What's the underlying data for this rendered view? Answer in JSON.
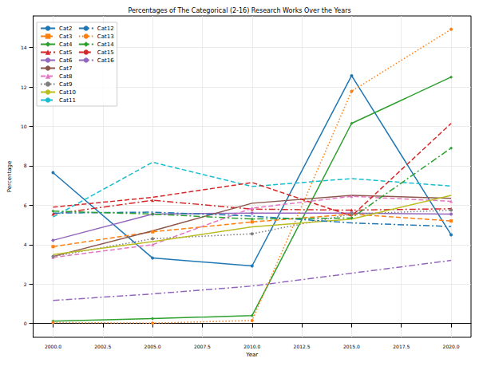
{
  "chart_data": {
    "type": "line",
    "title": "Percentages of The Categorical (2-16) Research Works Over the Years",
    "x_label": "Year",
    "y_label": "Percentage",
    "x": [
      2000,
      2005,
      2010,
      2015,
      2020
    ],
    "xlim": [
      1999,
      2021
    ],
    "xticks": [
      {
        "value": 2000,
        "label": "2000.0"
      },
      {
        "value": 2002.5,
        "label": "2002.5"
      },
      {
        "value": 2005,
        "label": "2005.0"
      },
      {
        "value": 2007.5,
        "label": "2007.5"
      },
      {
        "value": 2010,
        "label": "2010.0"
      },
      {
        "value": 2012.5,
        "label": "2012.5"
      },
      {
        "value": 2015,
        "label": "2015.0"
      },
      {
        "value": 2017.5,
        "label": "2017.5"
      },
      {
        "value": 2020,
        "label": "2020.0"
      }
    ],
    "ylim": [
      -0.7,
      15.6
    ],
    "yticks": [
      0,
      2,
      4,
      6,
      8,
      10,
      12,
      14
    ],
    "grid": true,
    "legend": "upper left",
    "series": [
      {
        "name": "Cat2",
        "color": "#1f77b4",
        "line_style": "solid",
        "marker": "circle",
        "values": [
          7.65,
          3.32,
          2.92,
          12.57,
          4.5
        ]
      },
      {
        "name": "Cat3",
        "color": "#ff7f0e",
        "line_style": "dashed",
        "marker": "square",
        "values": [
          3.9,
          4.65,
          5.15,
          5.55,
          5.2
        ]
      },
      {
        "name": "Cat4",
        "color": "#2ca02c",
        "line_style": "solid",
        "marker": "diamond",
        "values": [
          0.12,
          0.25,
          0.4,
          10.15,
          12.5
        ]
      },
      {
        "name": "Cat5",
        "color": "#d62728",
        "line_style": "dashdot",
        "marker": "triangle",
        "values": [
          5.55,
          6.25,
          5.8,
          5.75,
          5.82
        ]
      },
      {
        "name": "Cat6",
        "color": "#9467bd",
        "line_style": "solid",
        "marker": "circle",
        "values": [
          4.22,
          5.55,
          5.6,
          5.6,
          5.55
        ]
      },
      {
        "name": "Cat7",
        "color": "#8c564b",
        "line_style": "solid",
        "marker": "none",
        "values": [
          3.4,
          4.7,
          6.1,
          6.5,
          6.35
        ]
      },
      {
        "name": "Cat8",
        "color": "#e377c2",
        "line_style": "dashed",
        "marker": "triangle",
        "values": [
          3.35,
          4.0,
          5.85,
          6.45,
          6.2
        ]
      },
      {
        "name": "Cat9",
        "color": "#7f7f7f",
        "line_style": "dotted",
        "marker": "circle",
        "values": [
          3.4,
          4.3,
          4.55,
          5.55,
          5.75
        ]
      },
      {
        "name": "Cat10",
        "color": "#bcbd22",
        "line_style": "solid",
        "marker": "none",
        "values": [
          3.5,
          4.15,
          4.9,
          5.3,
          6.5
        ]
      },
      {
        "name": "Cat11",
        "color": "#17becf",
        "line_style": "dashed",
        "marker": "none",
        "values": [
          5.4,
          8.18,
          6.95,
          7.35,
          6.97
        ]
      },
      {
        "name": "Cat12",
        "color": "#1f77b4",
        "line_style": "dashdot",
        "marker": "none",
        "values": [
          5.6,
          5.65,
          5.45,
          5.1,
          4.92
        ]
      },
      {
        "name": "Cat13",
        "color": "#ff7f0e",
        "line_style": "dotted",
        "marker": "circle",
        "values": [
          0.05,
          0.02,
          0.15,
          11.78,
          14.92
        ]
      },
      {
        "name": "Cat14",
        "color": "#2ca02c",
        "line_style": "dashdot",
        "marker": "diamond",
        "values": [
          5.7,
          5.55,
          5.3,
          5.35,
          8.9
        ]
      },
      {
        "name": "Cat15",
        "color": "#d62728",
        "line_style": "dashed",
        "marker": "none",
        "values": [
          5.9,
          6.4,
          7.15,
          5.45,
          10.15
        ]
      },
      {
        "name": "Cat16",
        "color": "#9467bd",
        "line_style": "dashdot",
        "marker": "none",
        "values": [
          1.17,
          1.5,
          1.9,
          2.55,
          3.2
        ]
      }
    ]
  }
}
